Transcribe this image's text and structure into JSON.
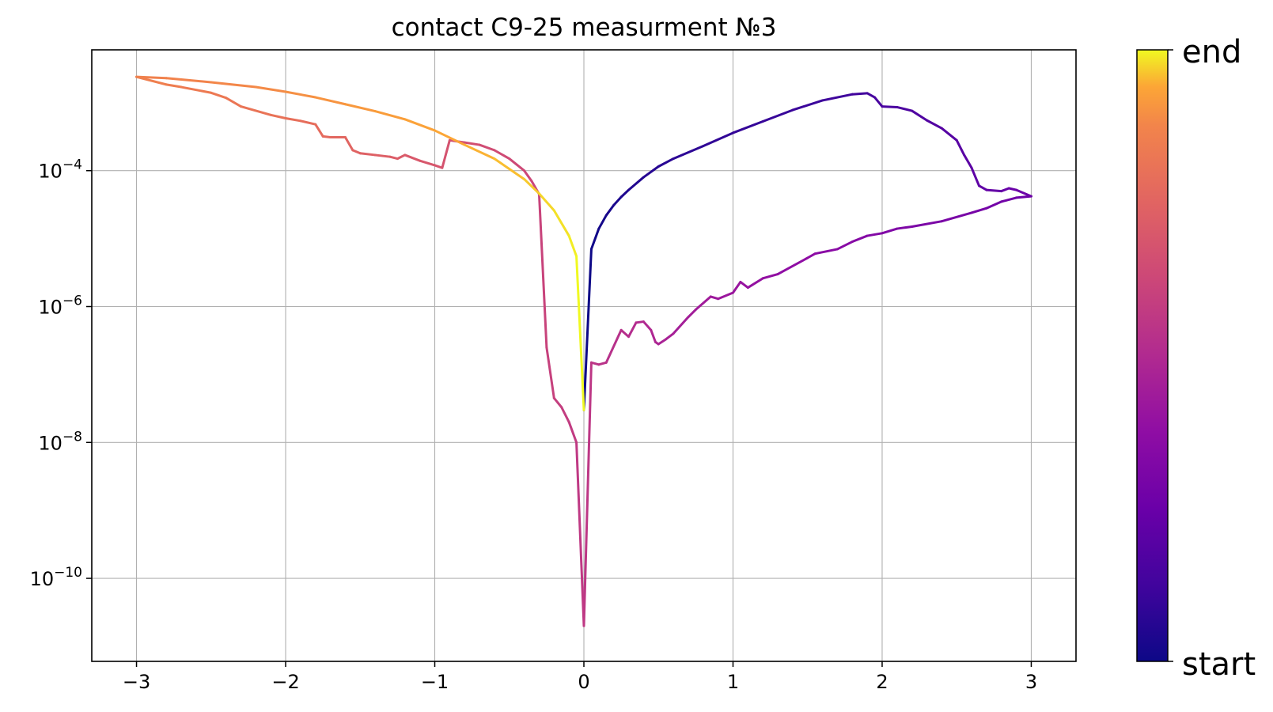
{
  "chart_data": {
    "type": "line",
    "title": "contact C9-25 measurment №3",
    "xlabel": "",
    "ylabel": "",
    "yscale": "log",
    "xlim": [
      -3.3,
      3.3
    ],
    "ylim": [
      6e-12,
      0.006
    ],
    "grid": true,
    "xticks": [
      {
        "value": -3,
        "label": "−3"
      },
      {
        "value": -2,
        "label": "−2"
      },
      {
        "value": -1,
        "label": "−1"
      },
      {
        "value": 0,
        "label": "0"
      },
      {
        "value": 1,
        "label": "1"
      },
      {
        "value": 2,
        "label": "2"
      },
      {
        "value": 3,
        "label": "3"
      }
    ],
    "yticks": [
      {
        "value": 0.0001,
        "base": "10",
        "exp": "−4"
      },
      {
        "value": 1e-06,
        "base": "10",
        "exp": "−6"
      },
      {
        "value": 1e-08,
        "base": "10",
        "exp": "−8"
      },
      {
        "value": 1e-10,
        "base": "10",
        "exp": "−10"
      }
    ],
    "colorbar": {
      "colormap": "plasma",
      "top_label": "end",
      "bottom_label": "start"
    },
    "series": [
      {
        "segment": "start: 0 to +3",
        "points": [
          [
            0.0,
            3e-08
          ],
          [
            0.05,
            7e-06
          ],
          [
            0.1,
            1.4e-05
          ],
          [
            0.15,
            2.2e-05
          ],
          [
            0.2,
            3.1e-05
          ],
          [
            0.25,
            4.1e-05
          ],
          [
            0.3,
            5.2e-05
          ],
          [
            0.4,
            8e-05
          ],
          [
            0.5,
            0.000115
          ],
          [
            0.6,
            0.00015
          ],
          [
            0.8,
            0.00023
          ],
          [
            1.0,
            0.00036
          ],
          [
            1.2,
            0.00053
          ],
          [
            1.4,
            0.00078
          ],
          [
            1.6,
            0.00108
          ],
          [
            1.8,
            0.00133
          ],
          [
            1.9,
            0.00138
          ],
          [
            1.95,
            0.0012
          ],
          [
            2.0,
            0.00088
          ],
          [
            2.1,
            0.00086
          ],
          [
            2.2,
            0.00076
          ],
          [
            2.3,
            0.00055
          ],
          [
            2.4,
            0.00042
          ],
          [
            2.5,
            0.00028
          ],
          [
            2.55,
            0.00017
          ],
          [
            2.6,
            0.00011
          ],
          [
            2.65,
            6e-05
          ],
          [
            2.7,
            5.2e-05
          ],
          [
            2.8,
            5e-05
          ],
          [
            2.85,
            5.5e-05
          ],
          [
            2.9,
            5.2e-05
          ],
          [
            3.0,
            4.2e-05
          ]
        ]
      },
      {
        "segment": "+3 back to 0",
        "points": [
          [
            3.0,
            4.2e-05
          ],
          [
            2.9,
            4e-05
          ],
          [
            2.8,
            3.5e-05
          ],
          [
            2.7,
            2.8e-05
          ],
          [
            2.6,
            2.4e-05
          ],
          [
            2.4,
            1.8e-05
          ],
          [
            2.2,
            1.5e-05
          ],
          [
            2.1,
            1.4e-05
          ],
          [
            2.0,
            1.2e-05
          ],
          [
            1.9,
            1.1e-05
          ],
          [
            1.8,
            9e-06
          ],
          [
            1.7,
            7e-06
          ],
          [
            1.55,
            6e-06
          ],
          [
            1.5,
            5.2e-06
          ],
          [
            1.3,
            3e-06
          ],
          [
            1.2,
            2.6e-06
          ],
          [
            1.1,
            1.9e-06
          ],
          [
            1.05,
            2.3e-06
          ],
          [
            1.0,
            1.6e-06
          ],
          [
            0.9,
            1.3e-06
          ],
          [
            0.85,
            1.4e-06
          ],
          [
            0.75,
            9e-07
          ],
          [
            0.7,
            7e-07
          ],
          [
            0.6,
            4e-07
          ],
          [
            0.55,
            3.3e-07
          ],
          [
            0.5,
            2.8e-07
          ],
          [
            0.48,
            3e-07
          ],
          [
            0.45,
            4.5e-07
          ],
          [
            0.4,
            6e-07
          ],
          [
            0.35,
            5.8e-07
          ],
          [
            0.3,
            3.6e-07
          ],
          [
            0.25,
            4.5e-07
          ],
          [
            0.15,
            1.5e-07
          ],
          [
            0.1,
            1.4e-07
          ],
          [
            0.05,
            1.5e-07
          ],
          [
            0.0,
            2e-11
          ]
        ]
      },
      {
        "segment": "0 to −3",
        "points": [
          [
            0.0,
            2e-11
          ],
          [
            -0.05,
            1e-08
          ],
          [
            -0.1,
            2e-08
          ],
          [
            -0.15,
            3.3e-08
          ],
          [
            -0.2,
            4.5e-08
          ],
          [
            -0.25,
            2.5e-07
          ],
          [
            -0.3,
            4.5e-05
          ],
          [
            -0.35,
            7e-05
          ],
          [
            -0.4,
            0.0001
          ],
          [
            -0.5,
            0.00015
          ],
          [
            -0.6,
            0.0002
          ],
          [
            -0.7,
            0.00024
          ],
          [
            -0.8,
            0.00026
          ],
          [
            -0.9,
            0.00028
          ],
          [
            -0.95,
            0.00011
          ],
          [
            -1.0,
            0.00012
          ],
          [
            -1.1,
            0.00014
          ],
          [
            -1.2,
            0.00017
          ],
          [
            -1.25,
            0.00015
          ],
          [
            -1.3,
            0.00016
          ],
          [
            -1.4,
            0.00017
          ],
          [
            -1.5,
            0.00018
          ],
          [
            -1.55,
            0.0002
          ],
          [
            -1.6,
            0.00031
          ],
          [
            -1.7,
            0.00031
          ],
          [
            -1.75,
            0.00032
          ],
          [
            -1.8,
            0.00048
          ],
          [
            -1.9,
            0.00054
          ],
          [
            -2.0,
            0.00059
          ],
          [
            -2.1,
            0.00066
          ],
          [
            -2.3,
            0.00088
          ],
          [
            -2.4,
            0.00118
          ],
          [
            -2.5,
            0.0014
          ],
          [
            -2.7,
            0.0017
          ],
          [
            -2.8,
            0.00185
          ],
          [
            -3.0,
            0.0024
          ]
        ]
      },
      {
        "segment": "end: −3 back to 0",
        "points": [
          [
            -3.0,
            0.0024
          ],
          [
            -2.8,
            0.0023
          ],
          [
            -2.5,
            0.002
          ],
          [
            -2.2,
            0.0017
          ],
          [
            -2.0,
            0.00145
          ],
          [
            -1.8,
            0.0012
          ],
          [
            -1.6,
            0.00095
          ],
          [
            -1.4,
            0.00075
          ],
          [
            -1.2,
            0.00057
          ],
          [
            -1.0,
            0.00039
          ],
          [
            -0.8,
            0.00024
          ],
          [
            -0.6,
            0.00015
          ],
          [
            -0.4,
            7.5e-05
          ],
          [
            -0.3,
            4.6e-05
          ],
          [
            -0.2,
            2.6e-05
          ],
          [
            -0.1,
            1.1e-05
          ],
          [
            -0.05,
            5.5e-06
          ],
          [
            0.0,
            3e-08
          ]
        ]
      }
    ]
  }
}
